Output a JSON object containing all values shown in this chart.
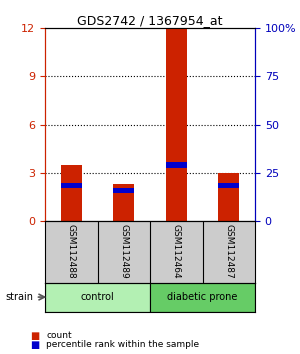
{
  "title": "GDS2742 / 1367954_at",
  "samples": [
    "GSM112488",
    "GSM112489",
    "GSM112464",
    "GSM112487"
  ],
  "red_values": [
    3.5,
    2.3,
    12.0,
    3.0
  ],
  "blue_values": [
    2.2,
    1.9,
    3.5,
    2.2
  ],
  "ylim_left": [
    0,
    12
  ],
  "ylim_right": [
    0,
    100
  ],
  "yticks_left": [
    0,
    3,
    6,
    9,
    12
  ],
  "yticks_right": [
    0,
    25,
    50,
    75,
    100
  ],
  "ytick_right_labels": [
    "0",
    "25",
    "50",
    "75",
    "100%"
  ],
  "groups": [
    {
      "label": "control",
      "samples": [
        0,
        1
      ],
      "color": "#b3f0b3"
    },
    {
      "label": "diabetic prone",
      "samples": [
        2,
        3
      ],
      "color": "#66cc66"
    }
  ],
  "bar_color_red": "#cc2200",
  "bar_color_blue": "#0000cc",
  "bar_width": 0.4,
  "background_color": "#ffffff",
  "label_row_color": "#cccccc",
  "left_axis_color": "#cc2200",
  "right_axis_color": "#0000bb",
  "legend_count": "count",
  "legend_percentile": "percentile rank within the sample",
  "strain_label": "strain",
  "blue_bar_height": 0.35,
  "grid_lines": [
    3,
    6,
    9
  ]
}
